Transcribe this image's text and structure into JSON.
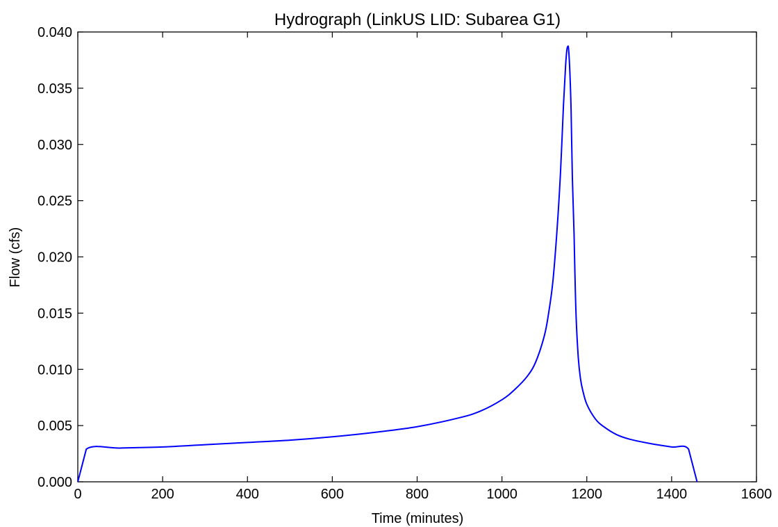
{
  "chart_data": {
    "type": "line",
    "title": "Hydrograph (LinkUS LID: Subarea G1)",
    "xlabel": "Time (minutes)",
    "ylabel": "Flow (cfs)",
    "xlim": [
      0,
      1600
    ],
    "ylim": [
      0,
      0.04
    ],
    "xticks": [
      0,
      200,
      400,
      600,
      800,
      1000,
      1200,
      1400,
      1600
    ],
    "xtick_labels": [
      "0",
      "200",
      "400",
      "600",
      "800",
      "1000",
      "1200",
      "1400",
      "1600"
    ],
    "yticks": [
      0,
      0.005,
      0.01,
      0.015,
      0.02,
      0.025,
      0.03,
      0.035,
      0.04
    ],
    "ytick_labels": [
      "0.000",
      "0.005",
      "0.010",
      "0.015",
      "0.020",
      "0.025",
      "0.030",
      "0.035",
      "0.040"
    ],
    "grid": false,
    "colors": {
      "series": "#0000ff",
      "axes": "#000000"
    },
    "series": [
      {
        "x": [
          0,
          20,
          100,
          200,
          300,
          400,
          500,
          600,
          700,
          800,
          900,
          950,
          1000,
          1030,
          1060,
          1080,
          1100,
          1110,
          1120,
          1130,
          1138,
          1145,
          1150,
          1153,
          1155,
          1157,
          1160,
          1163,
          1166,
          1170,
          1172,
          1175,
          1180,
          1185,
          1190,
          1200,
          1220,
          1240,
          1270,
          1300,
          1350,
          1400,
          1440,
          1460
        ],
        "y": [
          0,
          0.0029,
          0.003,
          0.0031,
          0.0033,
          0.0035,
          0.0037,
          0.004,
          0.0044,
          0.0049,
          0.0057,
          0.0063,
          0.0073,
          0.0082,
          0.0094,
          0.0107,
          0.013,
          0.015,
          0.0178,
          0.0225,
          0.0275,
          0.0335,
          0.037,
          0.0384,
          0.0387,
          0.0385,
          0.0365,
          0.033,
          0.027,
          0.022,
          0.0185,
          0.0145,
          0.011,
          0.0092,
          0.0082,
          0.0069,
          0.0056,
          0.0049,
          0.0042,
          0.0038,
          0.0034,
          0.0031,
          0.0029,
          0
        ]
      }
    ]
  }
}
